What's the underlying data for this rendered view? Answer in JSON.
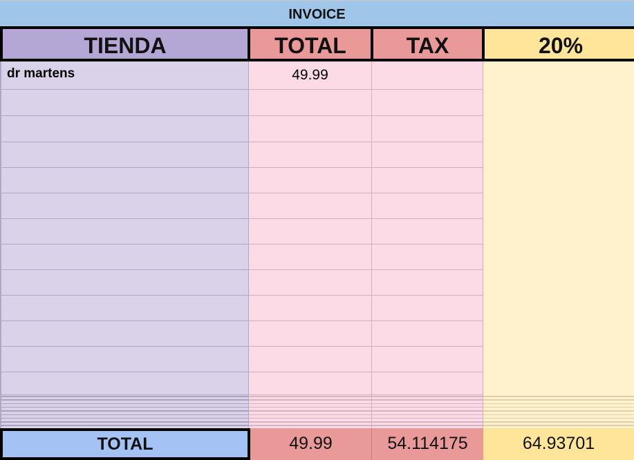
{
  "title": "INVOICE",
  "headers": {
    "store": "TIENDA",
    "total": "TOTAL",
    "tax": "TAX",
    "pct": "20%"
  },
  "rows": [
    {
      "store": "dr martens",
      "total": "49.99",
      "tax": ""
    },
    {
      "store": "",
      "total": "",
      "tax": ""
    },
    {
      "store": "",
      "total": "",
      "tax": ""
    },
    {
      "store": "",
      "total": "",
      "tax": ""
    },
    {
      "store": "",
      "total": "",
      "tax": ""
    },
    {
      "store": "",
      "total": "",
      "tax": ""
    },
    {
      "store": "",
      "total": "",
      "tax": ""
    },
    {
      "store": "",
      "total": "",
      "tax": ""
    },
    {
      "store": "",
      "total": "",
      "tax": ""
    },
    {
      "store": "",
      "total": "",
      "tax": ""
    },
    {
      "store": "",
      "total": "",
      "tax": ""
    },
    {
      "store": "",
      "total": "",
      "tax": ""
    },
    {
      "store": "",
      "total": "",
      "tax": ""
    }
  ],
  "totals": {
    "label": "TOTAL",
    "total": "49.99",
    "tax": "54.114175",
    "pct": "64.93701"
  },
  "colors": {
    "title": "#9fc5e8",
    "store_header": "#b4a7d6",
    "store_body": "#d9d2e9",
    "red_header": "#ea9999",
    "red_body": "#fcdbe6",
    "yellow_header": "#ffe599",
    "yellow_body": "#fff2cc",
    "total_label": "#a4c2f4"
  }
}
